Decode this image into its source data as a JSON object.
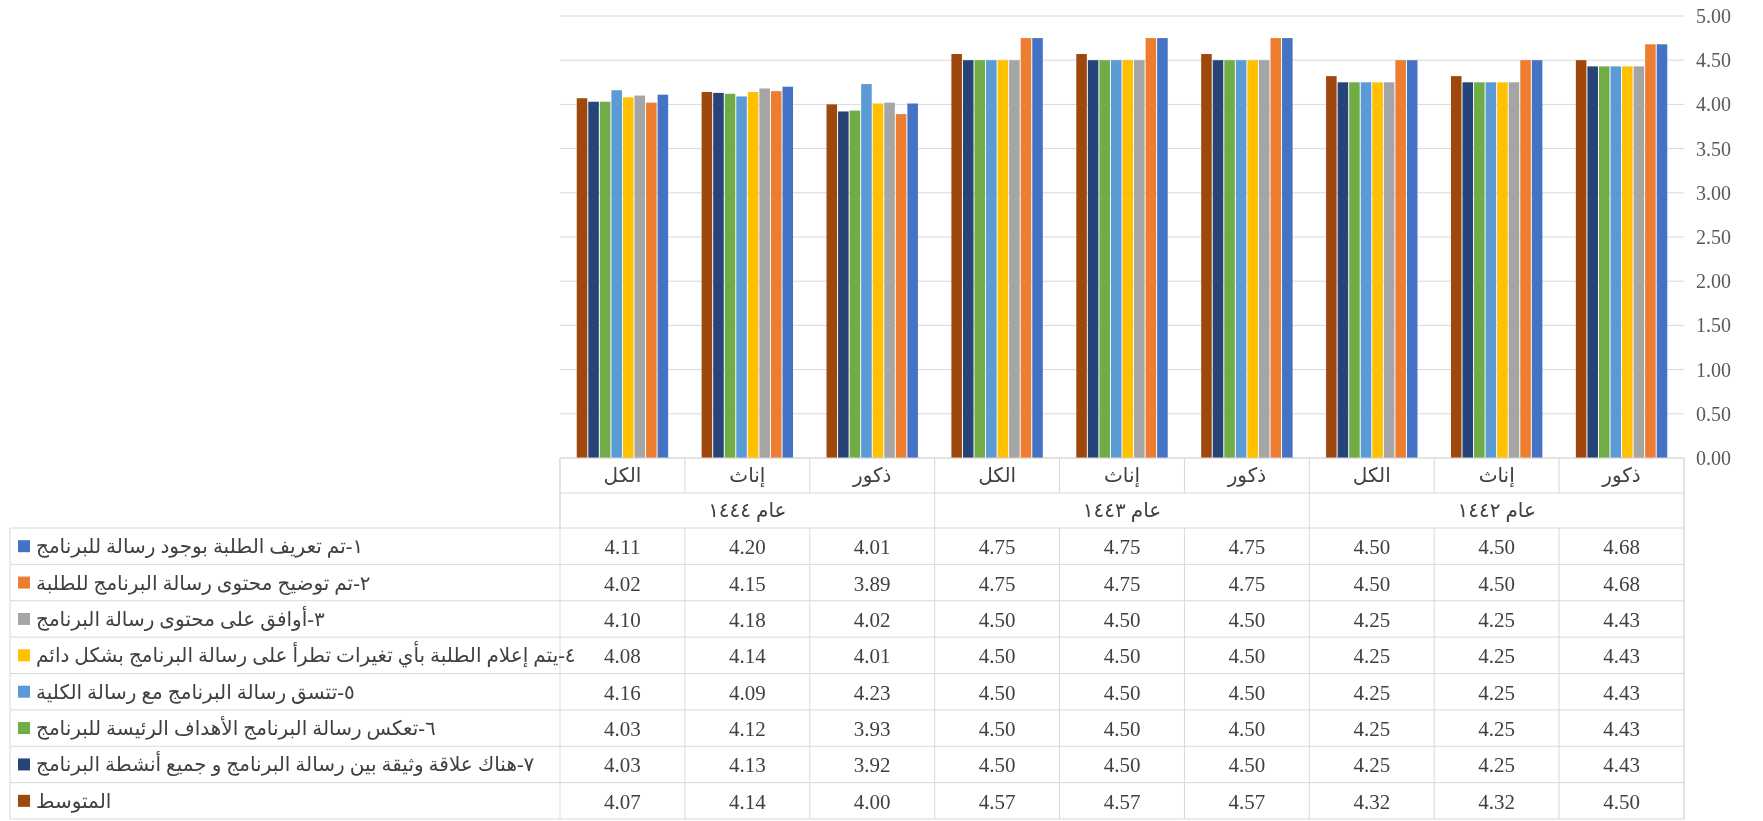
{
  "chart_data": {
    "type": "bar",
    "categories": [
      "الكل",
      "إناث",
      "ذكور",
      "الكل",
      "إناث",
      "ذكور",
      "الكل",
      "إناث",
      "ذكور"
    ],
    "series": [
      {
        "name": "١-تم تعريف الطلبة بوجود رسالة للبرنامج",
        "color": "#4472c4",
        "values": [
          4.11,
          4.2,
          4.01,
          4.75,
          4.75,
          4.75,
          4.5,
          4.5,
          4.68
        ],
        "value_labels": [
          "4.11",
          "4.20",
          "4.01",
          "4.75",
          "4.75",
          "4.75",
          "4.50",
          "4.50",
          "4.68"
        ]
      },
      {
        "name": "٢-تم توضيح محتوى رسالة البرنامج للطلبة",
        "color": "#ed7d31",
        "values": [
          4.02,
          4.15,
          3.89,
          4.75,
          4.75,
          4.75,
          4.5,
          4.5,
          4.68
        ],
        "value_labels": [
          "4.02",
          "4.15",
          "3.89",
          "4.75",
          "4.75",
          "4.75",
          "4.50",
          "4.50",
          "4.68"
        ]
      },
      {
        "name": "٣-أوافق على محتوى رسالة البرنامج",
        "color": "#a5a5a5",
        "values": [
          4.1,
          4.18,
          4.02,
          4.5,
          4.5,
          4.5,
          4.25,
          4.25,
          4.43
        ],
        "value_labels": [
          "4.10",
          "4.18",
          "4.02",
          "4.50",
          "4.50",
          "4.50",
          "4.25",
          "4.25",
          "4.43"
        ]
      },
      {
        "name": "٤-يتم إعلام الطلبة بأي تغيرات تطرأ على رسالة البرنامج بشكل دائم",
        "color": "#ffc000",
        "values": [
          4.08,
          4.14,
          4.01,
          4.5,
          4.5,
          4.5,
          4.25,
          4.25,
          4.43
        ],
        "value_labels": [
          "4.08",
          "4.14",
          "4.01",
          "4.50",
          "4.50",
          "4.50",
          "4.25",
          "4.25",
          "4.43"
        ]
      },
      {
        "name": "٥-تتسق رسالة البرنامج مع رسالة الكلية",
        "color": "#5b9bd5",
        "values": [
          4.16,
          4.09,
          4.23,
          4.5,
          4.5,
          4.5,
          4.25,
          4.25,
          4.43
        ],
        "value_labels": [
          "4.16",
          "4.09",
          "4.23",
          "4.50",
          "4.50",
          "4.50",
          "4.25",
          "4.25",
          "4.43"
        ]
      },
      {
        "name": "٦-تعكس رسالة البرنامج الأهداف الرئيسة للبرنامج",
        "color": "#70ad47",
        "values": [
          4.03,
          4.12,
          3.93,
          4.5,
          4.5,
          4.5,
          4.25,
          4.25,
          4.43
        ],
        "value_labels": [
          "4.03",
          "4.12",
          "3.93",
          "4.50",
          "4.50",
          "4.50",
          "4.25",
          "4.25",
          "4.43"
        ]
      },
      {
        "name": "٧-هناك علاقة وثيقة بين رسالة البرنامج و جميع أنشطة البرنامج",
        "color": "#264478",
        "values": [
          4.03,
          4.13,
          3.92,
          4.5,
          4.5,
          4.5,
          4.25,
          4.25,
          4.43
        ],
        "value_labels": [
          "4.03",
          "4.13",
          "3.92",
          "4.50",
          "4.50",
          "4.50",
          "4.25",
          "4.25",
          "4.43"
        ]
      },
      {
        "name": "المتوسط",
        "color": "#9e480e",
        "values": [
          4.07,
          4.14,
          4.0,
          4.57,
          4.57,
          4.57,
          4.32,
          4.32,
          4.5
        ],
        "value_labels": [
          "4.07",
          "4.14",
          "4.00",
          "4.57",
          "4.57",
          "4.57",
          "4.32",
          "4.32",
          "4.50"
        ]
      }
    ],
    "annotations": [
      "عام ١٤٤٤",
      "عام ١٤٤٣",
      "عام ١٤٤٢"
    ],
    "ylim": [
      0,
      5
    ],
    "yticks": [
      {
        "value": 0,
        "label": "0.00"
      },
      {
        "value": 0.5,
        "label": "0.50"
      },
      {
        "value": 1,
        "label": "1.00"
      },
      {
        "value": 1.5,
        "label": "1.50"
      },
      {
        "value": 2,
        "label": "2.00"
      },
      {
        "value": 2.5,
        "label": "2.50"
      },
      {
        "value": 3,
        "label": "3.00"
      },
      {
        "value": 3.5,
        "label": "3.50"
      },
      {
        "value": 4,
        "label": "4.00"
      },
      {
        "value": 4.5,
        "label": "4.50"
      },
      {
        "value": 5,
        "label": "5.00"
      }
    ],
    "grid": "y",
    "legend": "bottom"
  }
}
